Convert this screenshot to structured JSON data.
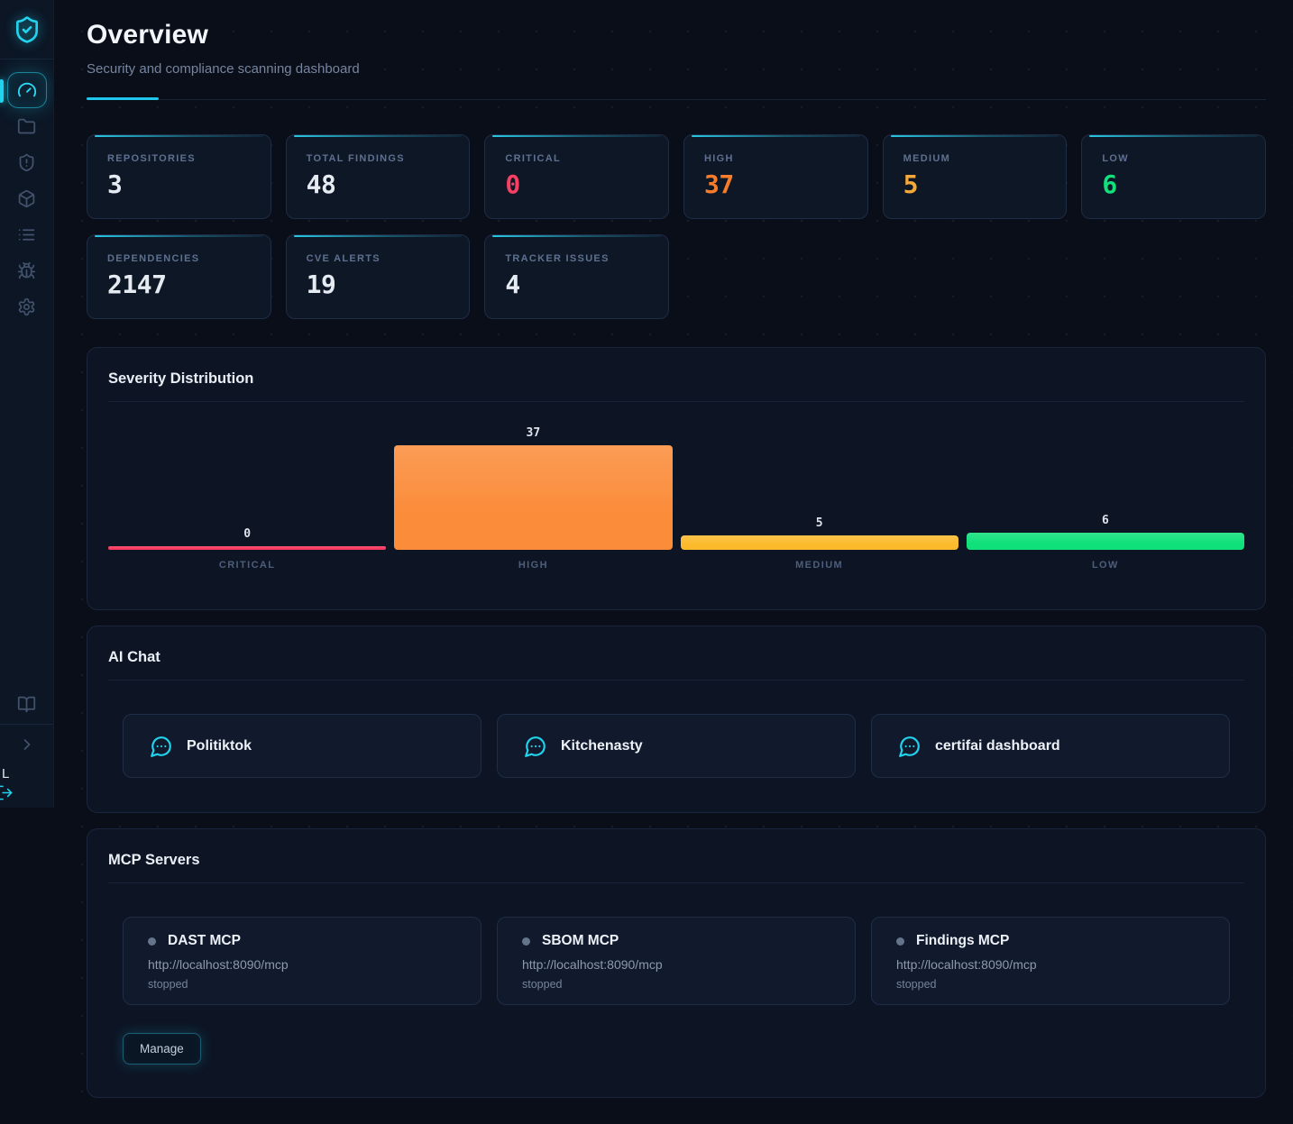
{
  "header": {
    "title": "Overview",
    "subtitle": "Security and compliance scanning dashboard"
  },
  "stats": [
    {
      "label": "REPOSITORIES",
      "value": "3",
      "color": "#e6ebf2"
    },
    {
      "label": "TOTAL FINDINGS",
      "value": "48",
      "color": "#e6ebf2"
    },
    {
      "label": "CRITICAL",
      "value": "0",
      "color": "#fb3e63"
    },
    {
      "label": "HIGH",
      "value": "37",
      "color": "#f97c2b"
    },
    {
      "label": "MEDIUM",
      "value": "5",
      "color": "#f5a93b"
    },
    {
      "label": "LOW",
      "value": "6",
      "color": "#10e17d"
    },
    {
      "label": "DEPENDENCIES",
      "value": "2147",
      "color": "#e6ebf2"
    },
    {
      "label": "CVE ALERTS",
      "value": "19",
      "color": "#e6ebf2"
    },
    {
      "label": "TRACKER ISSUES",
      "value": "4",
      "color": "#e6ebf2"
    }
  ],
  "chart_data": {
    "type": "bar",
    "title": "Severity Distribution",
    "categories": [
      "CRITICAL",
      "HIGH",
      "MEDIUM",
      "LOW"
    ],
    "values": [
      0,
      37,
      5,
      6
    ],
    "colors": [
      "#f8395f",
      "#fb8c3a",
      "#fbba2c",
      "#0fe07a"
    ],
    "xlabel": "",
    "ylabel": "",
    "ylim": [
      0,
      37
    ],
    "grid": false,
    "legend": false
  },
  "ai_chat": {
    "title": "AI Chat",
    "chats": [
      {
        "label": "Politiktok"
      },
      {
        "label": "Kitchenasty"
      },
      {
        "label": "certifai dashboard"
      }
    ]
  },
  "mcp": {
    "title": "MCP Servers",
    "manage_label": "Manage",
    "servers": [
      {
        "name": "DAST MCP",
        "url": "http://localhost:8090/mcp",
        "status": "stopped"
      },
      {
        "name": "SBOM MCP",
        "url": "http://localhost:8090/mcp",
        "status": "stopped"
      },
      {
        "name": "Findings MCP",
        "url": "http://localhost:8090/mcp",
        "status": "stopped"
      }
    ]
  },
  "sidebar": {
    "footer_label": "L",
    "icons": [
      "shield-check",
      "gauge",
      "folder",
      "shield-alert",
      "package",
      "list",
      "bug",
      "settings",
      "book-open",
      "chevron-right",
      "log-out"
    ]
  },
  "colors": {
    "accent": "#22d3ee",
    "critical": "#fb3e63",
    "high": "#f97c2b",
    "medium": "#f5a93b",
    "low": "#10e17d"
  }
}
